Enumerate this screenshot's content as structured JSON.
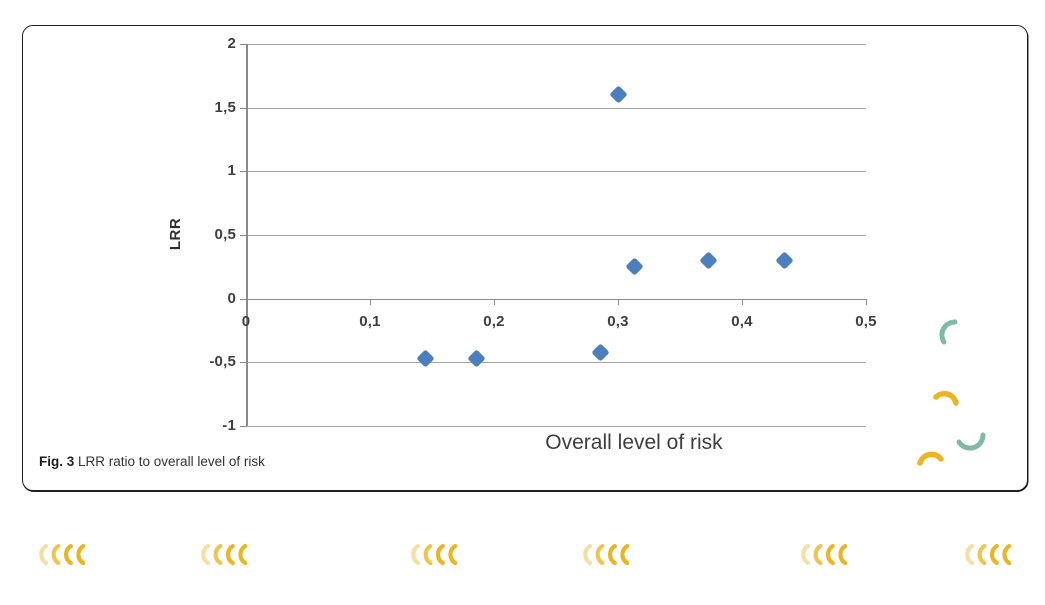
{
  "figure": {
    "caption_label": "Fig. 3",
    "caption_text": " LRR ratio to overall level of risk"
  },
  "chart_data": {
    "type": "scatter",
    "title": "",
    "xlabel": "Overall level of risk",
    "ylabel": "LRR",
    "xlim": [
      0,
      0.5
    ],
    "ylim": [
      -1,
      2
    ],
    "x_tick_labels": [
      "0",
      "0,1",
      "0,2",
      "0,3",
      "0,4",
      "0,5"
    ],
    "x_tick_values": [
      0,
      0.1,
      0.2,
      0.3,
      0.4,
      0.5
    ],
    "y_tick_labels": [
      "2",
      "1,5",
      "1",
      "0,5",
      "0",
      "-0,5",
      "-1"
    ],
    "y_tick_values": [
      2,
      1.5,
      1,
      0.5,
      0,
      -0.5,
      -1
    ],
    "grid": "horizontal",
    "legend": "none",
    "decimal_separator": ",",
    "marker": {
      "shape": "diamond",
      "color": "#4b7fbe"
    },
    "points": [
      {
        "x": 0.145,
        "y": -0.47
      },
      {
        "x": 0.186,
        "y": -0.47
      },
      {
        "x": 0.286,
        "y": -0.42
      },
      {
        "x": 0.3,
        "y": 1.6
      },
      {
        "x": 0.313,
        "y": 0.25
      },
      {
        "x": 0.373,
        "y": 0.3
      },
      {
        "x": 0.434,
        "y": 0.3
      }
    ]
  },
  "colors": {
    "marker_blue": "#4b7fbe",
    "gridline_gray": "#a3a3a3",
    "axis_gray": "#8a8a8a",
    "card_border": "#1f1f1f",
    "deco_teal": "#7fbaa5",
    "deco_gold": "#eeb420",
    "crescent_colors": [
      "#f6dfa0",
      "#f1c54d",
      "#eeb420",
      "#eeb420"
    ]
  },
  "decorations": {
    "corner_arc_names": [
      "teal-arc-top",
      "gold-arc-upper",
      "teal-arc-lower",
      "gold-arc-bottom"
    ],
    "crescent_group_count": 6,
    "crescents_per_group": 4
  }
}
